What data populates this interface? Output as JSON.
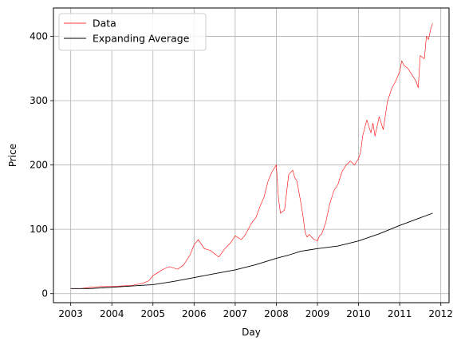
{
  "chart_data": {
    "type": "line",
    "title": "",
    "xlabel": "Day",
    "ylabel": "Price",
    "xlim": [
      2002.58,
      2012.2
    ],
    "ylim": [
      -14,
      444
    ],
    "xticks": [
      2003,
      2004,
      2005,
      2006,
      2007,
      2008,
      2009,
      2010,
      2011,
      2012
    ],
    "xtick_labels": [
      "2003",
      "2004",
      "2005",
      "2006",
      "2007",
      "2008",
      "2009",
      "2010",
      "2011",
      "2012"
    ],
    "yticks": [
      0,
      100,
      200,
      300,
      400
    ],
    "ytick_labels": [
      "0",
      "100",
      "200",
      "300",
      "400"
    ],
    "grid": true,
    "legend_position": "top-left",
    "series": [
      {
        "name": "Data",
        "color": "#ff0000",
        "x": [
          2003.0,
          2003.25,
          2003.5,
          2003.75,
          2004.0,
          2004.25,
          2004.5,
          2004.75,
          2004.9,
          2005.0,
          2005.1,
          2005.25,
          2005.4,
          2005.5,
          2005.6,
          2005.75,
          2005.9,
          2006.0,
          2006.1,
          2006.25,
          2006.4,
          2006.5,
          2006.6,
          2006.75,
          2006.9,
          2007.0,
          2007.15,
          2007.25,
          2007.4,
          2007.5,
          2007.6,
          2007.7,
          2007.8,
          2007.9,
          2008.0,
          2008.05,
          2008.1,
          2008.2,
          2008.3,
          2008.4,
          2008.45,
          2008.5,
          2008.6,
          2008.65,
          2008.7,
          2008.75,
          2008.8,
          2008.9,
          2009.0,
          2009.05,
          2009.1,
          2009.2,
          2009.3,
          2009.4,
          2009.5,
          2009.6,
          2009.7,
          2009.8,
          2009.9,
          2010.0,
          2010.05,
          2010.1,
          2010.2,
          2010.3,
          2010.35,
          2010.4,
          2010.5,
          2010.6,
          2010.7,
          2010.8,
          2010.9,
          2011.0,
          2011.05,
          2011.1,
          2011.2,
          2011.3,
          2011.4,
          2011.45,
          2011.5,
          2011.6,
          2011.65,
          2011.7,
          2011.75,
          2011.8
        ],
        "y": [
          8,
          8,
          10,
          11,
          11,
          12,
          13,
          16,
          20,
          28,
          32,
          38,
          42,
          40,
          38,
          45,
          60,
          76,
          84,
          70,
          67,
          62,
          57,
          70,
          80,
          90,
          84,
          92,
          110,
          118,
          135,
          150,
          175,
          190,
          200,
          150,
          125,
          130,
          185,
          192,
          180,
          175,
          140,
          120,
          95,
          88,
          92,
          85,
          82,
          90,
          92,
          110,
          140,
          160,
          170,
          190,
          200,
          206,
          200,
          210,
          220,
          245,
          270,
          250,
          265,
          245,
          275,
          255,
          298,
          318,
          330,
          345,
          362,
          355,
          350,
          340,
          330,
          320,
          370,
          365,
          400,
          395,
          410,
          420
        ]
      },
      {
        "name": "Expanding Average",
        "color": "#000000",
        "x": [
          2003.0,
          2003.5,
          2004.0,
          2004.5,
          2005.0,
          2005.5,
          2006.0,
          2006.5,
          2007.0,
          2007.5,
          2008.0,
          2008.3,
          2008.6,
          2009.0,
          2009.5,
          2010.0,
          2010.5,
          2011.0,
          2011.5,
          2011.8
        ],
        "y": [
          8,
          8,
          10,
          12,
          14,
          19,
          25,
          31,
          37,
          45,
          55,
          60,
          66,
          70,
          74,
          82,
          93,
          106,
          118,
          125
        ]
      }
    ]
  }
}
